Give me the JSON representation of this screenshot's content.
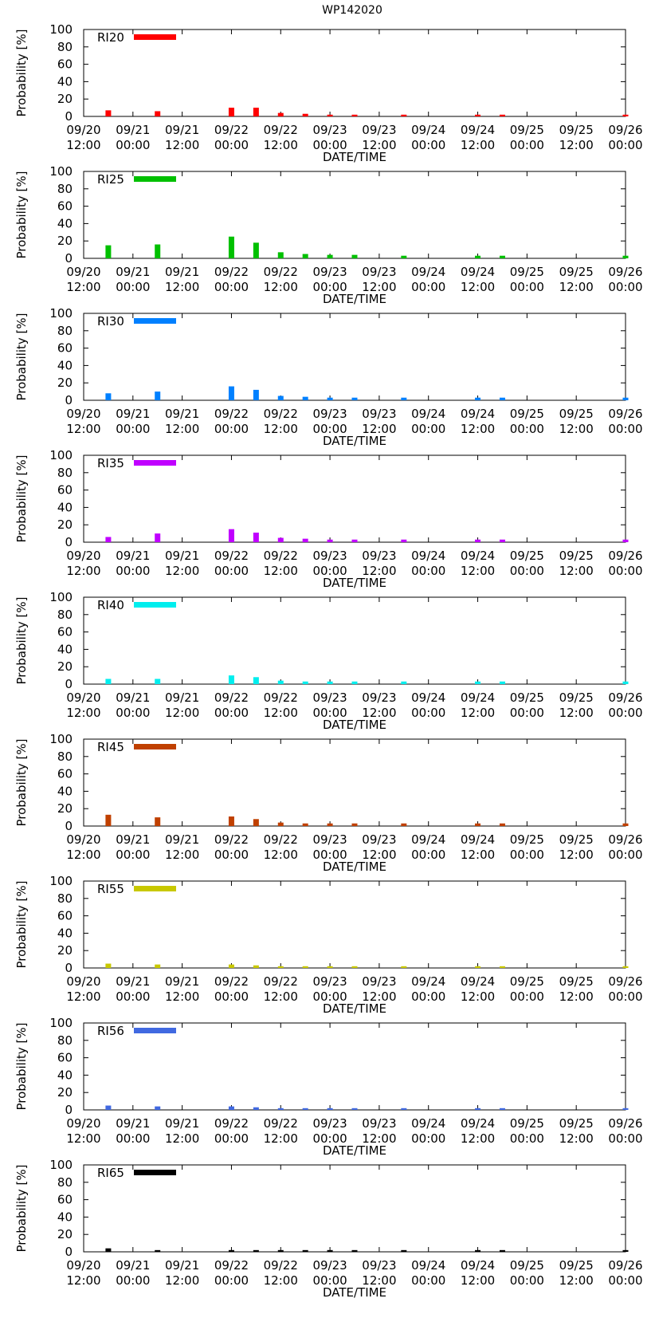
{
  "title": "WP142020",
  "chart_data": {
    "type": "bar",
    "title": "WP142020",
    "xlabel": "DATE/TIME",
    "ylabel": "Probability [%]",
    "ylim": [
      0,
      100
    ],
    "y_ticks": [
      "0",
      "20",
      "40",
      "60",
      "80",
      "100"
    ],
    "x_ticks": [
      {
        "date": "09/20",
        "time": "12:00"
      },
      {
        "date": "09/21",
        "time": "00:00"
      },
      {
        "date": "09/21",
        "time": "12:00"
      },
      {
        "date": "09/22",
        "time": "00:00"
      },
      {
        "date": "09/22",
        "time": "12:00"
      },
      {
        "date": "09/23",
        "time": "00:00"
      },
      {
        "date": "09/23",
        "time": "12:00"
      },
      {
        "date": "09/24",
        "time": "00:00"
      },
      {
        "date": "09/24",
        "time": "12:00"
      },
      {
        "date": "09/25",
        "time": "00:00"
      },
      {
        "date": "09/25",
        "time": "12:00"
      },
      {
        "date": "09/26",
        "time": "00:00"
      }
    ],
    "x_hours_from_start": [
      6,
      18,
      36,
      42,
      48,
      54,
      60,
      66,
      78,
      96,
      102,
      132
    ],
    "legend_position": "top-left",
    "grid": false,
    "series": [
      {
        "name": "RI20",
        "color": "#ff0000",
        "values": [
          7,
          6,
          10,
          10,
          4,
          3,
          2,
          2,
          2,
          2,
          2,
          2
        ]
      },
      {
        "name": "RI25",
        "color": "#00c000",
        "values": [
          15,
          16,
          25,
          18,
          7,
          5,
          4,
          4,
          3,
          3,
          3,
          3
        ]
      },
      {
        "name": "RI30",
        "color": "#0080ff",
        "values": [
          8,
          10,
          16,
          12,
          5,
          4,
          3,
          3,
          3,
          3,
          3,
          3
        ]
      },
      {
        "name": "RI35",
        "color": "#c000ff",
        "values": [
          6,
          10,
          15,
          11,
          5,
          4,
          3,
          3,
          3,
          3,
          3,
          3
        ]
      },
      {
        "name": "RI40",
        "color": "#00eeee",
        "values": [
          6,
          6,
          10,
          8,
          4,
          3,
          3,
          3,
          3,
          3,
          3,
          3
        ]
      },
      {
        "name": "RI45",
        "color": "#c04000",
        "values": [
          13,
          10,
          11,
          8,
          4,
          3,
          3,
          3,
          3,
          3,
          3,
          3
        ]
      },
      {
        "name": "RI55",
        "color": "#c8c800",
        "values": [
          5,
          4,
          4,
          3,
          2,
          2,
          2,
          2,
          2,
          2,
          2,
          2
        ]
      },
      {
        "name": "RI56",
        "color": "#4169e1",
        "values": [
          5,
          4,
          4,
          3,
          2,
          2,
          2,
          2,
          2,
          2,
          2,
          2
        ]
      },
      {
        "name": "RI65",
        "color": "#000000",
        "values": [
          4,
          2,
          2,
          2,
          2,
          2,
          2,
          2,
          2,
          2,
          2,
          2
        ]
      }
    ]
  }
}
